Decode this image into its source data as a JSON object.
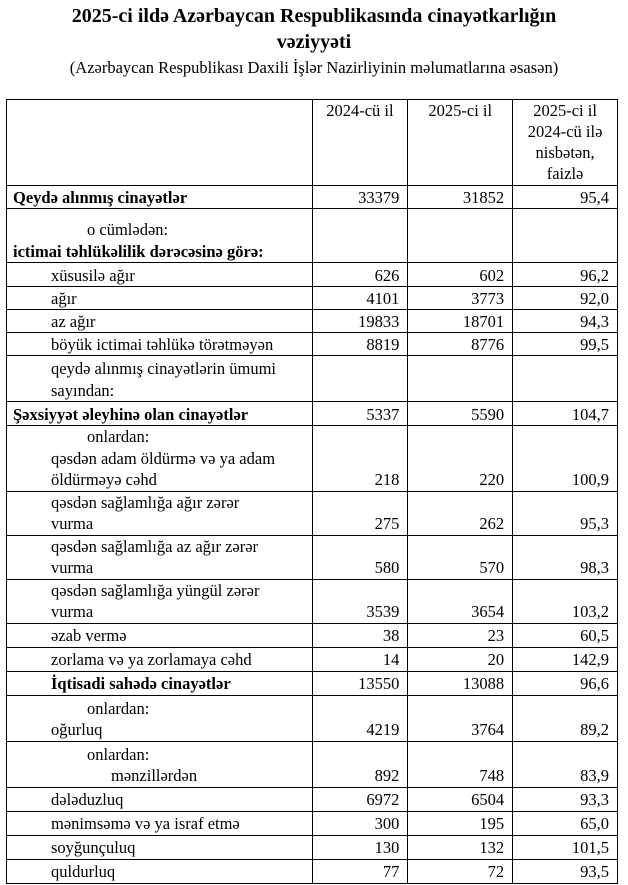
{
  "title": [
    "2025-ci ildə Azərbaycan Respublikasında cinayətkarlığın",
    "vəziyyəti"
  ],
  "subtitle": "(Azərbaycan Respublikası Daxili İşlər Nazirliyinin məlumatlarına əsasən)",
  "columns": [
    "",
    "2024-cü il",
    "2025-ci il",
    "2025-ci il 2024-cü ilə nisbətən, faizlə"
  ],
  "rows": [
    {
      "lines": [
        {
          "t": "Qeydə alınmış cinayətlər",
          "ind": 6
        }
      ],
      "bold": true,
      "v": [
        "33379",
        "31852",
        "95,4"
      ],
      "h": 23
    },
    {
      "lines": [
        {
          "t": "o cümlədən:",
          "ind": 80
        },
        {
          "t": "ictimai təhlükəlilik dərəcəsinə görə:",
          "ind": 6,
          "bold": true
        }
      ],
      "v": [
        "",
        "",
        ""
      ],
      "h": 54
    },
    {
      "lines": [
        {
          "t": "xüsusilə ağır",
          "ind": 44
        }
      ],
      "v": [
        "626",
        "602",
        "96,2"
      ],
      "h": 24
    },
    {
      "lines": [
        {
          "t": "ağır",
          "ind": 44
        }
      ],
      "v": [
        "4101",
        "3773",
        "92,0"
      ],
      "h": 23
    },
    {
      "lines": [
        {
          "t": "az ağır",
          "ind": 44
        }
      ],
      "v": [
        "19833",
        "18701",
        "94,3"
      ],
      "h": 23
    },
    {
      "lines": [
        {
          "t": "böyük ictimai təhlükə törətməyən",
          "ind": 44
        }
      ],
      "v": [
        "8819",
        "8776",
        "99,5"
      ],
      "h": 23
    },
    {
      "lines": [
        {
          "t": "qeydə alınmış cinayətlərin ümumi",
          "ind": 44
        },
        {
          "t": "sayından:",
          "ind": 44
        }
      ],
      "v": [
        "",
        "",
        ""
      ],
      "h": 46
    },
    {
      "lines": [
        {
          "t": "Şəxsiyyət əleyhinə olan cinayətlər",
          "ind": 6
        }
      ],
      "bold": true,
      "v": [
        "5337",
        "5590",
        "104,7"
      ],
      "h": 24
    },
    {
      "lines": [
        {
          "t": "onlardan:",
          "ind": 80
        },
        {
          "t": "qəsdən adam öldürmə və ya adam",
          "ind": 44
        },
        {
          "t": "öldürməyə cəhd",
          "ind": 44
        }
      ],
      "v": [
        "218",
        "220",
        "100,9"
      ],
      "h": 65
    },
    {
      "lines": [
        {
          "t": "qəsdən sağlamlığa ağır zərər",
          "ind": 44
        },
        {
          "t": "vurma",
          "ind": 44
        }
      ],
      "v": [
        "275",
        "262",
        "95,3"
      ],
      "h": 43
    },
    {
      "lines": [
        {
          "t": "qəsdən sağlamlığa az ağır zərər",
          "ind": 44
        },
        {
          "t": "vurma",
          "ind": 44
        }
      ],
      "v": [
        "580",
        "570",
        "98,3"
      ],
      "h": 43
    },
    {
      "lines": [
        {
          "t": "qəsdən sağlamlığa yüngül zərər",
          "ind": 44
        },
        {
          "t": "vurma",
          "ind": 44
        }
      ],
      "v": [
        "3539",
        "3654",
        "103,2"
      ],
      "h": 43
    },
    {
      "lines": [
        {
          "t": "əzab vermə",
          "ind": 44
        }
      ],
      "v": [
        "38",
        "23",
        "60,5"
      ],
      "h": 24
    },
    {
      "lines": [
        {
          "t": "zorlama və ya zorlamaya cəhd",
          "ind": 44
        }
      ],
      "v": [
        "14",
        "20",
        "142,9"
      ],
      "h": 24
    },
    {
      "lines": [
        {
          "t": "İqtisadi sahədə cinayətlər",
          "ind": 44
        }
      ],
      "bold": true,
      "v": [
        "13550",
        "13088",
        "96,6"
      ],
      "h": 24
    },
    {
      "lines": [
        {
          "t": "onlardan:",
          "ind": 80
        },
        {
          "t": "oğurluq",
          "ind": 44
        }
      ],
      "v": [
        "4219",
        "3764",
        "89,2"
      ],
      "h": 46
    },
    {
      "lines": [
        {
          "t": "onlardan:",
          "ind": 80
        },
        {
          "t": "mənzillərdən",
          "ind": 104
        }
      ],
      "v": [
        "892",
        "748",
        "83,9"
      ],
      "h": 46
    },
    {
      "lines": [
        {
          "t": "dələduzluq",
          "ind": 44
        }
      ],
      "v": [
        "6972",
        "6504",
        "93,3"
      ],
      "h": 24
    },
    {
      "lines": [
        {
          "t": "mənimsəmə və ya israf etmə",
          "ind": 44
        }
      ],
      "v": [
        "300",
        "195",
        "65,0"
      ],
      "h": 24
    },
    {
      "lines": [
        {
          "t": "soyğunçuluq",
          "ind": 44
        }
      ],
      "v": [
        "130",
        "132",
        "101,5"
      ],
      "h": 24
    },
    {
      "lines": [
        {
          "t": "quldurluq",
          "ind": 44
        }
      ],
      "v": [
        "77",
        "72",
        "93,5"
      ],
      "h": 24
    }
  ]
}
